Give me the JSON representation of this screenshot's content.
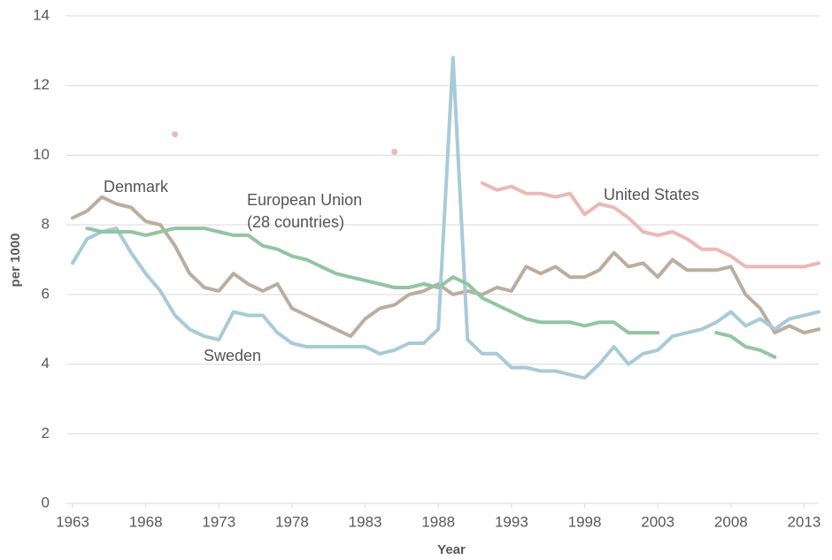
{
  "chart_data": {
    "type": "line",
    "x_label": "Year",
    "y_label": "per 1000",
    "x": [
      1963,
      1964,
      1965,
      1966,
      1967,
      1968,
      1969,
      1970,
      1971,
      1972,
      1973,
      1974,
      1975,
      1976,
      1977,
      1978,
      1979,
      1980,
      1981,
      1982,
      1983,
      1984,
      1985,
      1986,
      1987,
      1988,
      1989,
      1990,
      1991,
      1992,
      1993,
      1994,
      1995,
      1996,
      1997,
      1998,
      1999,
      2000,
      2001,
      2002,
      2003,
      2004,
      2005,
      2006,
      2007,
      2008,
      2009,
      2010,
      2011,
      2012,
      2013,
      2014
    ],
    "xlim": [
      1963,
      2014
    ],
    "xticks": [
      1963,
      1968,
      1973,
      1978,
      1983,
      1988,
      1993,
      1998,
      2003,
      2008,
      2013
    ],
    "ylim": [
      0,
      14
    ],
    "yticks": [
      0,
      2,
      4,
      6,
      8,
      10,
      12,
      14
    ],
    "grid": true,
    "series": [
      {
        "name": "Denmark",
        "color": "#bcad9f",
        "values": [
          8.2,
          8.4,
          8.8,
          8.6,
          8.5,
          8.1,
          8.0,
          7.4,
          6.6,
          6.2,
          6.1,
          6.6,
          6.3,
          6.1,
          6.3,
          5.6,
          5.4,
          5.2,
          5.0,
          4.8,
          5.3,
          5.6,
          5.7,
          6.0,
          6.1,
          6.3,
          6.0,
          6.1,
          6.0,
          6.2,
          6.1,
          6.8,
          6.6,
          6.8,
          6.5,
          6.5,
          6.7,
          7.2,
          6.8,
          6.9,
          6.5,
          7.0,
          6.7,
          6.7,
          6.7,
          6.8,
          6.0,
          5.6,
          4.9,
          5.1,
          4.9,
          5.0
        ]
      },
      {
        "name": "Sweden",
        "color": "#a9cad8",
        "values": [
          6.9,
          7.6,
          7.8,
          7.9,
          7.2,
          6.6,
          6.1,
          5.4,
          5.0,
          4.8,
          4.7,
          5.5,
          5.4,
          5.4,
          4.9,
          4.6,
          4.5,
          4.5,
          4.5,
          4.5,
          4.5,
          4.3,
          4.4,
          4.6,
          4.6,
          5.0,
          12.8,
          4.7,
          4.3,
          4.3,
          3.9,
          3.9,
          3.8,
          3.8,
          3.7,
          3.6,
          4.0,
          4.5,
          4.0,
          4.3,
          4.4,
          4.8,
          4.9,
          5.0,
          5.2,
          5.5,
          5.1,
          5.3,
          5.0,
          5.3,
          5.4,
          5.5
        ]
      },
      {
        "name": "European Union (28 countries)",
        "color": "#93c4a3",
        "values": [
          null,
          7.9,
          7.8,
          7.8,
          7.8,
          7.7,
          7.8,
          7.9,
          7.9,
          7.9,
          7.8,
          7.7,
          7.7,
          7.4,
          7.3,
          7.1,
          7.0,
          6.8,
          6.6,
          6.5,
          6.4,
          6.3,
          6.2,
          6.2,
          6.3,
          6.2,
          6.5,
          6.3,
          5.9,
          5.7,
          5.5,
          5.3,
          5.2,
          5.2,
          5.2,
          5.1,
          5.2,
          5.2,
          4.9,
          4.9,
          4.9,
          null,
          null,
          null,
          4.9,
          4.8,
          4.5,
          4.4,
          4.2,
          null,
          null,
          null
        ]
      },
      {
        "name": "United States",
        "color": "#ebb8b8",
        "values": [
          null,
          null,
          null,
          null,
          null,
          null,
          null,
          10.6,
          null,
          null,
          null,
          null,
          null,
          null,
          null,
          null,
          null,
          null,
          null,
          null,
          null,
          null,
          10.1,
          null,
          null,
          null,
          null,
          null,
          9.2,
          9.0,
          9.1,
          8.9,
          8.9,
          8.8,
          8.9,
          8.3,
          8.6,
          8.5,
          8.2,
          7.8,
          7.7,
          7.8,
          7.6,
          7.3,
          7.3,
          7.1,
          6.8,
          6.8,
          6.8,
          6.8,
          6.8,
          6.9
        ]
      }
    ]
  }
}
